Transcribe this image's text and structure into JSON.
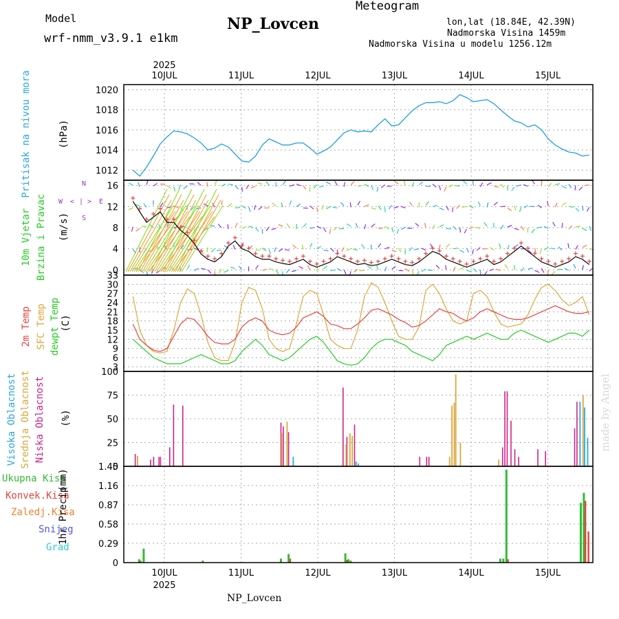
{
  "header": {
    "title": "NP_Lovcen",
    "model_label": "Model",
    "model_name": "wrf-nmm_v3.9.1 e1km",
    "meteogram_label": "Meteogram",
    "lonlat": "lon,lat (18.84E, 42.39N)",
    "altitude": "Nadmorska Visina 1459m",
    "model_altitude": "Nadmorska Visina u modelu 1256.12m",
    "footer_station": "NP_Lovcen",
    "credit": "made by Angel"
  },
  "colors": {
    "pressure": "#1e9ee0",
    "temp2m": "#e8413c",
    "sfc": "#dca63a",
    "dewpt": "#22cc22",
    "high_cloud": "#29a8e0",
    "mid_cloud": "#dca63a",
    "low_cloud": "#cc2288",
    "precip_total": "#33bb33",
    "convective": "#e8413c",
    "frozen": "#f08030",
    "snow": "#5555dd",
    "graupel": "#33cccc",
    "model_label": "#b060d0",
    "meteogram_label": "#e8b860",
    "info": "#9933cc"
  },
  "time_axis": {
    "year_label": "2025",
    "day_labels": [
      "10JUL",
      "11JUL",
      "12JUL",
      "13JUL",
      "14JUL",
      "15JUL"
    ]
  },
  "chart_data": [
    {
      "type": "line",
      "name": "pressure",
      "ylabel": "Pritisak na nivou mora",
      "unit": "(hPa)",
      "ylim": [
        1011.0,
        1020.5
      ],
      "ticks": [
        "1012",
        "1014",
        "1016",
        "1018",
        "1020"
      ],
      "x_day_range": [
        9.59,
        15.54
      ],
      "series": [
        {
          "values": [
            1012.0,
            1011.4,
            1012.3,
            1013.4,
            1014.6,
            1015.3,
            1015.9,
            1015.8,
            1015.6,
            1015.2,
            1014.7,
            1014.0,
            1014.2,
            1014.6,
            1014.3,
            1013.6,
            1012.9,
            1012.8,
            1013.4,
            1014.5,
            1015.1,
            1014.8,
            1014.5,
            1014.5,
            1014.7,
            1014.7,
            1014.2,
            1013.6,
            1013.9,
            1014.3,
            1015.0,
            1015.7,
            1016.0,
            1015.8,
            1015.9,
            1015.8,
            1016.5,
            1017.1,
            1016.4,
            1016.5,
            1017.2,
            1017.9,
            1018.4,
            1018.7,
            1018.7,
            1018.8,
            1018.6,
            1018.9,
            1019.5,
            1019.2,
            1018.8,
            1018.9,
            1019.0,
            1018.6,
            1018.0,
            1017.4,
            1016.9,
            1016.7,
            1016.3,
            1016.5,
            1016.0,
            1015.1,
            1014.5,
            1014.1,
            1013.8,
            1013.7,
            1013.4,
            1013.5
          ]
        }
      ]
    },
    {
      "type": "line",
      "name": "wind",
      "ylabel": "10m Vjetar",
      "ylabel2": "Brzina i Pravac",
      "unit": "(m/s)",
      "ylim": [
        -1,
        17
      ],
      "ticks": [
        "0",
        "4",
        "8",
        "12",
        "16"
      ],
      "x_day_range": [
        9.59,
        15.54
      ],
      "compass": [
        "W",
        "<",
        "|",
        ">",
        "E",
        "N",
        "S"
      ],
      "series": [
        {
          "values": [
            13.0,
            11.0,
            9.0,
            10.0,
            11.0,
            9.0,
            9.0,
            7.5,
            6.5,
            5.0,
            3.0,
            2.0,
            1.5,
            2.5,
            4.5,
            5.5,
            4.0,
            3.5,
            2.5,
            2.0,
            2.0,
            1.5,
            1.2,
            1.0,
            1.5,
            2.0,
            1.0,
            0.5,
            1.0,
            1.5,
            2.5,
            2.0,
            1.5,
            1.0,
            1.2,
            0.8,
            1.0,
            1.5,
            2.0,
            1.5,
            1.0,
            0.8,
            1.5,
            2.5,
            3.5,
            3.0,
            2.0,
            1.5,
            1.0,
            0.5,
            1.0,
            1.5,
            2.0,
            1.0,
            1.5,
            2.5,
            3.5,
            4.5,
            3.5,
            2.5,
            1.5,
            1.0,
            0.5,
            1.0,
            1.5,
            2.5,
            2.0,
            1.0
          ]
        }
      ]
    },
    {
      "type": "line",
      "name": "temperature",
      "ylabel": "2m Temp",
      "ylabel2": "SFC Temp",
      "ylabel3": "dewpt Temp",
      "unit": "(C)",
      "ylim": [
        1.5,
        33
      ],
      "ticks": [
        "3",
        "6",
        "9",
        "12",
        "15",
        "18",
        "21",
        "24",
        "27",
        "30",
        "33"
      ],
      "x_day_range": [
        9.59,
        15.54
      ],
      "series": [
        {
          "name": "2m Temp",
          "values": [
            17,
            12,
            10,
            8.5,
            8,
            9,
            13,
            17,
            19,
            18.5,
            16,
            13,
            11,
            10.5,
            10.5,
            12,
            16,
            18,
            19,
            18,
            15,
            14,
            13.5,
            14,
            16,
            19,
            20,
            21,
            19.5,
            17,
            16.5,
            15.5,
            15.5,
            17,
            19,
            21.5,
            22,
            21,
            20,
            18.5,
            17.5,
            16,
            16.5,
            18,
            20,
            22,
            21,
            20.5,
            19,
            18,
            19,
            21,
            22,
            21,
            20,
            19,
            18.5,
            18.5,
            19,
            20,
            21,
            22,
            23,
            22,
            21,
            20.5,
            20.5,
            21
          ]
        },
        {
          "name": "SFC Temp",
          "values": [
            26,
            15,
            10,
            8,
            7.5,
            8,
            15,
            24,
            28.5,
            27,
            20,
            11,
            6,
            5,
            5,
            11,
            24,
            29,
            28,
            22,
            12,
            9,
            8,
            9,
            17,
            26,
            28,
            27,
            20,
            12,
            10,
            9,
            9,
            15,
            26,
            30.5,
            29,
            24,
            18,
            13,
            12,
            12,
            16,
            28,
            30,
            27,
            22,
            18,
            17,
            18,
            27,
            28,
            26,
            21,
            17,
            16,
            16.5,
            17,
            20,
            25,
            29,
            30,
            28,
            25,
            23,
            24,
            26,
            20
          ]
        },
        {
          "name": "dewpt Temp",
          "values": [
            12,
            10,
            8,
            6,
            5,
            4,
            4,
            4,
            5,
            6,
            7,
            6,
            5,
            4,
            4,
            5,
            8,
            10,
            12,
            10,
            7,
            6,
            5,
            6,
            8,
            10,
            12,
            13,
            11,
            8,
            5,
            4,
            3.5,
            4,
            6,
            9,
            11,
            12,
            12,
            11,
            10,
            8,
            7,
            6,
            5,
            7,
            10,
            11,
            12,
            13,
            12,
            13,
            14,
            13,
            12,
            12,
            14,
            15,
            14,
            13,
            12,
            11,
            12,
            13,
            14,
            14,
            13,
            15
          ]
        }
      ]
    },
    {
      "type": "bar",
      "name": "clouds",
      "ylabel": "Visoka Oblacnost",
      "ylabel2": "Srednja Oblacnost",
      "ylabel3": "Niska Oblacnost",
      "unit": "(%)",
      "ylim": [
        0,
        100
      ],
      "ticks": [
        "0",
        "25",
        "50",
        "75",
        "100"
      ],
      "series": [
        {
          "name": "Niska Oblacnost",
          "points": [
            [
              9.62,
              13
            ],
            [
              9.82,
              7
            ],
            [
              9.86,
              10
            ],
            [
              9.93,
              10
            ],
            [
              9.95,
              10
            ],
            [
              10.07,
              20
            ],
            [
              10.12,
              65
            ],
            [
              10.24,
              64
            ],
            [
              11.52,
              46
            ],
            [
              11.55,
              42
            ],
            [
              11.62,
              36
            ],
            [
              12.33,
              83
            ],
            [
              12.38,
              31
            ],
            [
              12.48,
              44
            ],
            [
              13.33,
              10
            ],
            [
              13.42,
              10
            ],
            [
              13.45,
              10
            ],
            [
              14.41,
              20
            ],
            [
              14.44,
              79
            ],
            [
              14.47,
              79
            ],
            [
              14.52,
              48
            ],
            [
              14.57,
              18
            ],
            [
              14.62,
              10
            ],
            [
              14.87,
              18
            ],
            [
              14.97,
              16
            ],
            [
              15.35,
              40
            ],
            [
              15.38,
              68
            ]
          ]
        },
        {
          "name": "Srednja Oblacnost",
          "points": [
            [
              9.65,
              11
            ],
            [
              11.53,
              35
            ],
            [
              11.6,
              47
            ],
            [
              12.37,
              23
            ],
            [
              12.42,
              35
            ],
            [
              12.45,
              32
            ],
            [
              13.72,
              10
            ],
            [
              13.75,
              64
            ],
            [
              13.78,
              67
            ],
            [
              13.8,
              97
            ],
            [
              13.86,
              25
            ],
            [
              14.36,
              7
            ],
            [
              15.46,
              75
            ]
          ]
        },
        {
          "name": "Visoka Oblacnost",
          "points": [
            [
              11.68,
              10
            ],
            [
              12.5,
              5
            ],
            [
              12.53,
              3
            ],
            [
              15.42,
              68
            ],
            [
              15.48,
              62
            ],
            [
              15.52,
              30
            ]
          ]
        }
      ]
    },
    {
      "type": "bar",
      "name": "precipitation",
      "ylabel": "1hr Precip",
      "unit": "(mm)",
      "legend": [
        "Ukupna Kisa",
        "Konvek.Kisa",
        "Zaledj.Kisa",
        "Snijeg",
        "Grad"
      ],
      "ylim": [
        0,
        1.45
      ],
      "ticks": [
        "0",
        "0.29",
        "0.58",
        "0.87",
        "1.16",
        "1.45"
      ],
      "series": [
        {
          "name": "Ukupna Kisa",
          "points": [
            [
              9.67,
              0.05
            ],
            [
              9.73,
              0.21
            ],
            [
              10.5,
              0.03
            ],
            [
              11.52,
              0.06
            ],
            [
              11.62,
              0.13
            ],
            [
              12.36,
              0.14
            ],
            [
              12.4,
              0.05
            ],
            [
              12.43,
              0.03
            ],
            [
              14.38,
              0.06
            ],
            [
              14.42,
              0.06
            ],
            [
              14.46,
              1.4
            ],
            [
              15.43,
              0.9
            ],
            [
              15.47,
              1.05
            ]
          ]
        },
        {
          "name": "Konvek.Kisa",
          "points": [
            [
              9.69,
              0.03
            ],
            [
              11.64,
              0.06
            ],
            [
              12.38,
              0.04
            ],
            [
              14.48,
              0.05
            ],
            [
              15.49,
              0.93
            ],
            [
              15.53,
              0.47
            ]
          ]
        },
        {
          "name": "Zaledj.Kisa",
          "points": []
        },
        {
          "name": "Snijeg",
          "points": []
        },
        {
          "name": "Grad",
          "points": []
        }
      ]
    }
  ]
}
